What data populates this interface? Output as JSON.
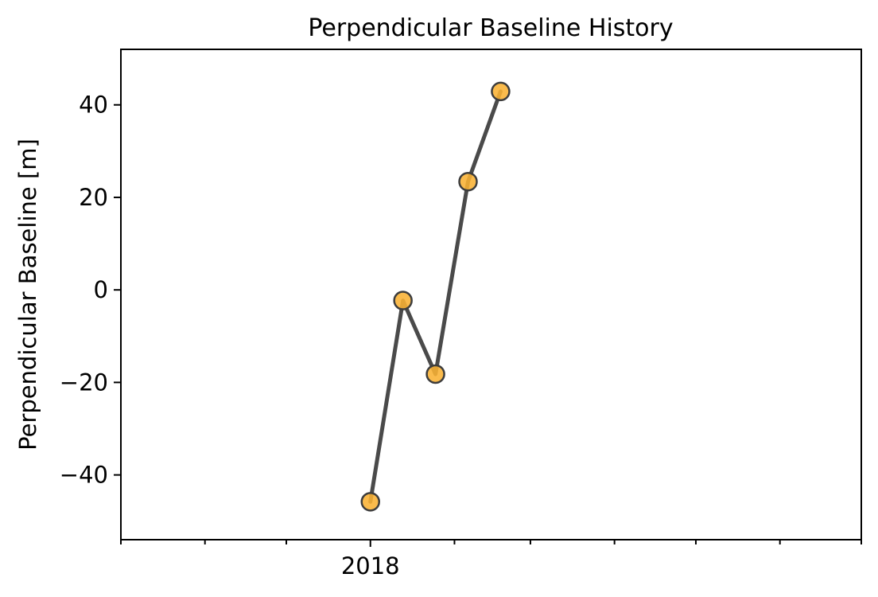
{
  "chart_data": {
    "type": "line",
    "title": "Perpendicular Baseline History",
    "ylabel": "Perpendicular Baseline [m]",
    "xlabel": "",
    "x_axis_type": "date",
    "xlim": [
      "2017-10-01",
      "2018-07-01"
    ],
    "ylim": [
      -54,
      52
    ],
    "x_ticks": [
      {
        "value": "2017-10-01",
        "label": ""
      },
      {
        "value": "2017-11-01",
        "label": ""
      },
      {
        "value": "2017-12-01",
        "label": ""
      },
      {
        "value": "2018-01-01",
        "label": "2018"
      },
      {
        "value": "2018-02-01",
        "label": ""
      },
      {
        "value": "2018-03-01",
        "label": ""
      },
      {
        "value": "2018-04-01",
        "label": ""
      },
      {
        "value": "2018-05-01",
        "label": ""
      },
      {
        "value": "2018-06-01",
        "label": ""
      },
      {
        "value": "2018-07-01",
        "label": ""
      }
    ],
    "y_ticks": [
      {
        "value": -40,
        "label": "−40"
      },
      {
        "value": -20,
        "label": "−20"
      },
      {
        "value": 0,
        "label": "0"
      },
      {
        "value": 20,
        "label": "20"
      },
      {
        "value": 40,
        "label": "40"
      }
    ],
    "grid": false,
    "series": [
      {
        "x": [
          "2018-01-01",
          "2018-01-13",
          "2018-01-25",
          "2018-02-06",
          "2018-02-18"
        ],
        "y": [
          -45.8,
          -2.3,
          -18.2,
          23.4,
          42.9
        ],
        "line_color": "#4a4a4a",
        "marker_color": "#f9b233",
        "marker_edge_color": "#3d3d3d"
      }
    ]
  }
}
